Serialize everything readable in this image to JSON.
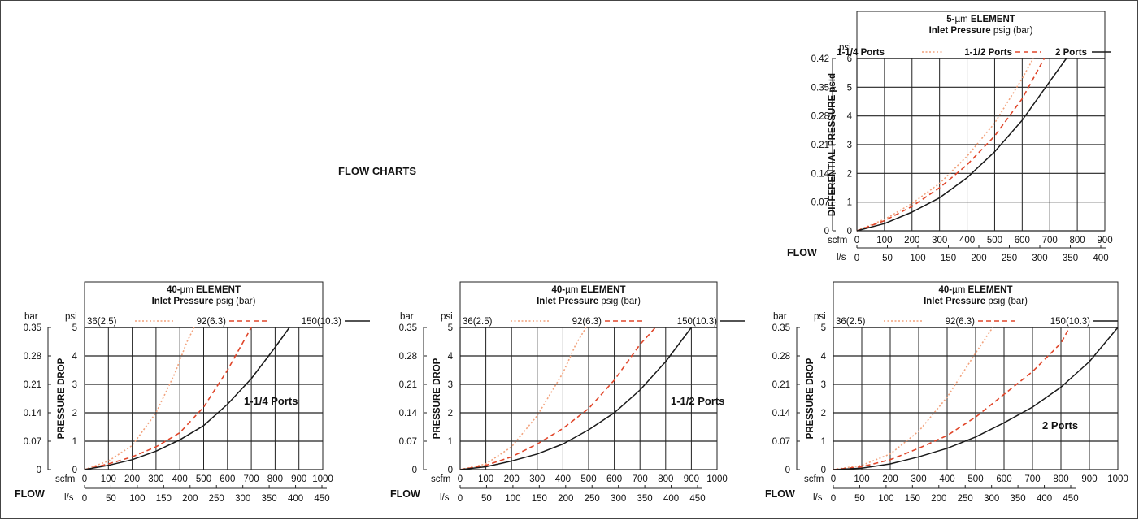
{
  "page": {
    "title": "FLOW CHARTS"
  },
  "colors": {
    "black": "#1a1a1a",
    "dashed_red": "#e0462a",
    "dotted_orange": "#f2a27c"
  },
  "chart_data": [
    {
      "type": "line",
      "title": "5-µm ELEMENT",
      "title_prefix": "5-",
      "title_unit": "µm",
      "title_suffix": " ELEMENT",
      "subtitle": "Inlet Pressure psig (bar)",
      "subtitle_bold": "Inlet Pressure",
      "subtitle_rest": " psig (bar)",
      "ylabel": "DIFFERENTIAL PRESSURE psid",
      "y_unit": "psi",
      "y_unit_secondary": "",
      "x_label_primary": "scfm",
      "x_label_secondary": "l/s",
      "flow_label": "FLOW",
      "x_ticks": [
        "0",
        "100",
        "200",
        "300",
        "400",
        "500",
        "600",
        "700",
        "800",
        "900"
      ],
      "x2_ticks": [
        "0",
        "50",
        "100",
        "150",
        "200",
        "250",
        "300",
        "350",
        "400"
      ],
      "y_ticks": [
        "0",
        "1",
        "2",
        "3",
        "4",
        "5",
        "6"
      ],
      "y2_ticks": [
        "0",
        "0.07",
        "0.14",
        "0.21",
        "0.28",
        "0.35",
        "0.42"
      ],
      "xlim": [
        0,
        900
      ],
      "ylim": [
        0,
        6
      ],
      "x2lim": [
        0,
        450
      ],
      "grid": true,
      "legend_position": "top",
      "inner_label": "",
      "series": [
        {
          "name": "1-1/4 Ports",
          "style": "dotted",
          "color": "#f2a27c",
          "x": [
            0,
            100,
            200,
            300,
            400,
            500,
            600,
            640
          ],
          "y": [
            0,
            0.4,
            0.95,
            1.65,
            2.6,
            3.75,
            5.3,
            6
          ]
        },
        {
          "name": "1-1/2 Ports",
          "style": "dashed",
          "color": "#e0462a",
          "x": [
            0,
            100,
            200,
            300,
            400,
            500,
            600,
            680
          ],
          "y": [
            0,
            0.35,
            0.85,
            1.5,
            2.3,
            3.3,
            4.6,
            6
          ]
        },
        {
          "name": "2 Ports",
          "style": "solid",
          "color": "#1a1a1a",
          "x": [
            0,
            100,
            200,
            300,
            400,
            500,
            600,
            700,
            760
          ],
          "y": [
            0,
            0.25,
            0.65,
            1.15,
            1.85,
            2.75,
            3.85,
            5.2,
            6
          ]
        }
      ]
    },
    {
      "type": "line",
      "title": "40-µm ELEMENT",
      "title_prefix": "40-",
      "title_unit": "µm",
      "title_suffix": " ELEMENT",
      "subtitle": "Inlet Pressure psig (bar)",
      "subtitle_bold": "Inlet Pressure",
      "subtitle_rest": " psig (bar)",
      "ylabel": "PRESSURE DROP",
      "y_unit": "psi",
      "y_unit_secondary": "bar",
      "x_label_primary": "scfm",
      "x_label_secondary": "l/s",
      "flow_label": "FLOW",
      "x_ticks": [
        "0",
        "100",
        "200",
        "300",
        "400",
        "500",
        "600",
        "700",
        "800",
        "900",
        "1000"
      ],
      "x2_ticks": [
        "0",
        "50",
        "100",
        "150",
        "200",
        "250",
        "300",
        "350",
        "400",
        "450"
      ],
      "y_ticks": [
        "0",
        "1",
        "2",
        "3",
        "4",
        "5"
      ],
      "y2_ticks": [
        "0",
        "0.07",
        "0.14",
        "0.21",
        "0.28",
        "0.35"
      ],
      "xlim": [
        0,
        1000
      ],
      "ylim": [
        0,
        5
      ],
      "x2lim": [
        0,
        500
      ],
      "grid": true,
      "legend_position": "top",
      "inner_label": "1-1/4 Ports",
      "series": [
        {
          "name": "36(2.5)",
          "style": "dotted",
          "color": "#f2a27c",
          "x": [
            0,
            100,
            200,
            300,
            380,
            430,
            460
          ],
          "y": [
            0,
            0.3,
            0.85,
            2,
            3.4,
            4.5,
            5
          ]
        },
        {
          "name": "92(6.3)",
          "style": "dashed",
          "color": "#e0462a",
          "x": [
            0,
            100,
            200,
            300,
            400,
            500,
            600,
            700
          ],
          "y": [
            0,
            0.2,
            0.45,
            0.8,
            1.3,
            2.2,
            3.5,
            5
          ]
        },
        {
          "name": "150(10.3)",
          "style": "solid",
          "color": "#1a1a1a",
          "x": [
            0,
            100,
            200,
            300,
            400,
            500,
            600,
            700,
            800,
            860
          ],
          "y": [
            0,
            0.15,
            0.35,
            0.65,
            1.05,
            1.55,
            2.3,
            3.2,
            4.3,
            5
          ]
        }
      ]
    },
    {
      "type": "line",
      "title": "40-µm ELEMENT",
      "title_prefix": "40-",
      "title_unit": "µm",
      "title_suffix": " ELEMENT",
      "subtitle": "Inlet Pressure psig (bar)",
      "subtitle_bold": "Inlet Pressure",
      "subtitle_rest": " psig (bar)",
      "ylabel": "PRESSURE DROP",
      "y_unit": "psi",
      "y_unit_secondary": "bar",
      "x_label_primary": "scfm",
      "x_label_secondary": "l/s",
      "flow_label": "FLOW",
      "x_ticks": [
        "0",
        "100",
        "200",
        "300",
        "400",
        "500",
        "600",
        "700",
        "800",
        "900",
        "1000"
      ],
      "x2_ticks": [
        "0",
        "50",
        "100",
        "150",
        "200",
        "250",
        "300",
        "350",
        "400",
        "450"
      ],
      "y_ticks": [
        "0",
        "1",
        "2",
        "3",
        "4",
        "5"
      ],
      "y2_ticks": [
        "0",
        "0.07",
        "0.14",
        "0.21",
        "0.28",
        "0.35"
      ],
      "xlim": [
        0,
        1000
      ],
      "ylim": [
        0,
        5
      ],
      "x2lim": [
        0,
        500
      ],
      "grid": true,
      "legend_position": "top",
      "inner_label": "1-1/2 Ports",
      "series": [
        {
          "name": "36(2.5)",
          "style": "dotted",
          "color": "#f2a27c",
          "x": [
            0,
            100,
            200,
            300,
            400,
            450,
            490
          ],
          "y": [
            0,
            0.2,
            0.8,
            1.9,
            3.4,
            4.4,
            5
          ]
        },
        {
          "name": "92(6.3)",
          "style": "dashed",
          "color": "#e0462a",
          "x": [
            0,
            100,
            200,
            300,
            400,
            500,
            600,
            700,
            760
          ],
          "y": [
            0,
            0.15,
            0.45,
            0.9,
            1.45,
            2.15,
            3.15,
            4.4,
            5
          ]
        },
        {
          "name": "150(10.3)",
          "style": "solid",
          "color": "#1a1a1a",
          "x": [
            0,
            100,
            200,
            300,
            400,
            500,
            600,
            700,
            800,
            900
          ],
          "y": [
            0,
            0.1,
            0.3,
            0.55,
            0.9,
            1.4,
            2,
            2.8,
            3.8,
            5
          ]
        }
      ]
    },
    {
      "type": "line",
      "title": "40-µm ELEMENT",
      "title_prefix": "40-",
      "title_unit": "µm",
      "title_suffix": " ELEMENT",
      "subtitle": "Inlet Pressure psig (bar)",
      "subtitle_bold": "Inlet Pressure",
      "subtitle_rest": " psig (bar)",
      "ylabel": "PRESSURE DROP",
      "y_unit": "psi",
      "y_unit_secondary": "bar",
      "x_label_primary": "scfm",
      "x_label_secondary": "l/s",
      "flow_label": "FLOW",
      "x_ticks": [
        "0",
        "100",
        "200",
        "300",
        "400",
        "500",
        "600",
        "700",
        "800",
        "900",
        "1000"
      ],
      "x2_ticks": [
        "0",
        "50",
        "100",
        "150",
        "200",
        "250",
        "300",
        "350",
        "400",
        "450"
      ],
      "y_ticks": [
        "0",
        "1",
        "2",
        "3",
        "4",
        "5"
      ],
      "y2_ticks": [
        "0",
        "0.07",
        "0.14",
        "0.21",
        "0.28",
        "0.35"
      ],
      "xlim": [
        0,
        1000
      ],
      "ylim": [
        0,
        5
      ],
      "x2lim": [
        0,
        500
      ],
      "grid": true,
      "legend_position": "top",
      "inner_label": "2 Ports",
      "series": [
        {
          "name": "36(2.5)",
          "style": "dotted",
          "color": "#f2a27c",
          "x": [
            0,
            100,
            200,
            300,
            400,
            500,
            560
          ],
          "y": [
            0,
            0.15,
            0.55,
            1.35,
            2.55,
            4.1,
            5
          ]
        },
        {
          "name": "92(6.3)",
          "style": "dashed",
          "color": "#e0462a",
          "x": [
            0,
            100,
            200,
            300,
            400,
            500,
            600,
            700,
            800,
            830
          ],
          "y": [
            0,
            0.1,
            0.35,
            0.75,
            1.2,
            1.85,
            2.65,
            3.45,
            4.45,
            5
          ]
        },
        {
          "name": "150(10.3)",
          "style": "solid",
          "color": "#1a1a1a",
          "x": [
            0,
            100,
            200,
            300,
            400,
            500,
            600,
            700,
            800,
            900,
            1000
          ],
          "y": [
            0,
            0.05,
            0.2,
            0.45,
            0.75,
            1.15,
            1.65,
            2.2,
            2.9,
            3.8,
            5
          ]
        }
      ]
    }
  ]
}
